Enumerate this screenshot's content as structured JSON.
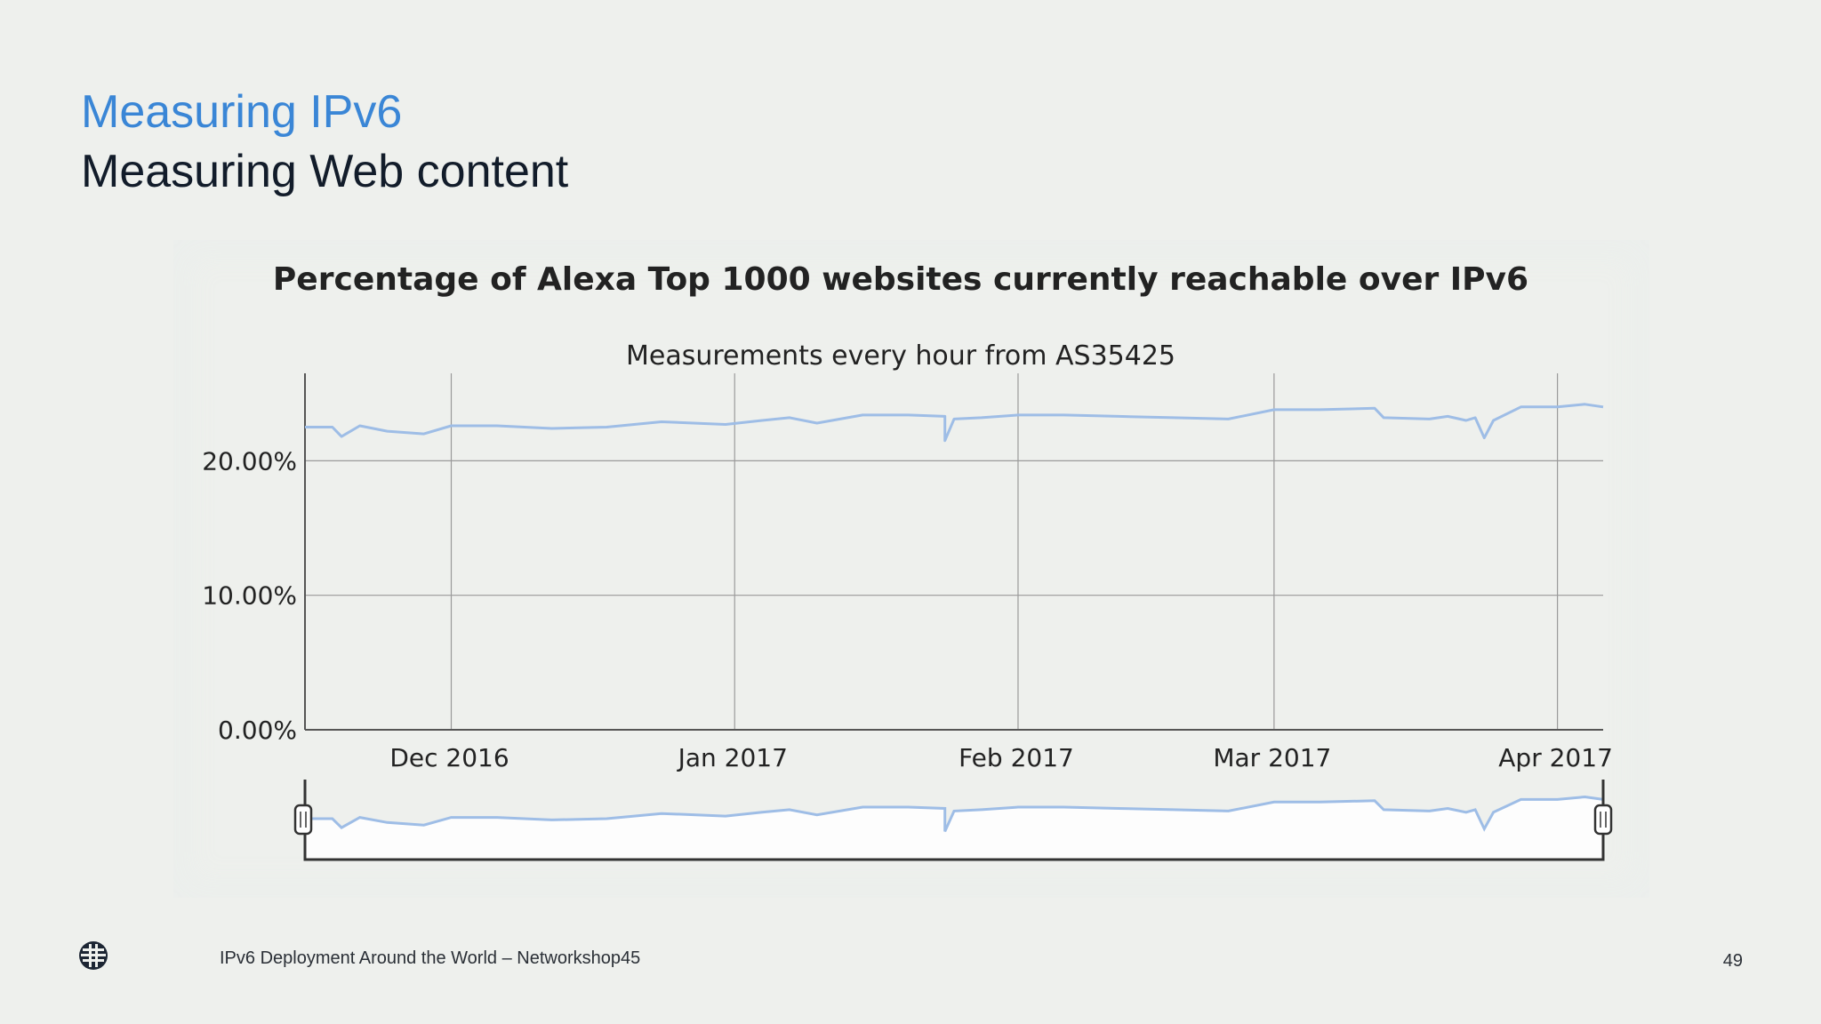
{
  "slide": {
    "title": "Measuring IPv6",
    "subtitle": "Measuring Web content"
  },
  "footer": {
    "text": "IPv6 Deployment Around the World – Networkshop45",
    "page_number": "49",
    "logo_icon": "globe-logo-icon"
  },
  "colors": {
    "title_blue": "#3a86d6",
    "series_line": "#9ebde6",
    "navigator_fill": "#ffffff",
    "grid": "#9a9a9a"
  },
  "chart_data": {
    "type": "line",
    "title": "Percentage of Alexa Top 1000 websites currently reachable over IPv6",
    "subtitle": "Measurements every hour from AS35425",
    "xlabel": "",
    "ylabel": "",
    "y_ticks": [
      "0.00%",
      "10.00%",
      "20.00%"
    ],
    "x_ticks": [
      "Dec 2016",
      "Jan 2017",
      "Feb 2017",
      "Mar 2017",
      "Apr 2017"
    ],
    "x_tick_dates": [
      "2016-12-01",
      "2017-01-01",
      "2017-02-01",
      "2017-03-01",
      "2017-04-01"
    ],
    "xlim": [
      "2016-11-15",
      "2017-04-06"
    ],
    "ylim": [
      0,
      26.5
    ],
    "grid": true,
    "legend": "none",
    "navigator": true,
    "series": [
      {
        "x": [
          "2016-11-15",
          "2016-11-18",
          "2016-11-19",
          "2016-11-21",
          "2016-11-24",
          "2016-11-28",
          "2016-12-01",
          "2016-12-06",
          "2016-12-12",
          "2016-12-18",
          "2016-12-24",
          "2016-12-31",
          "2017-01-04",
          "2017-01-07",
          "2017-01-10",
          "2017-01-15",
          "2017-01-20",
          "2017-01-24",
          "2017-01-24",
          "2017-01-25",
          "2017-01-28",
          "2017-02-01",
          "2017-02-06",
          "2017-02-12",
          "2017-02-18",
          "2017-02-24",
          "2017-03-01",
          "2017-03-06",
          "2017-03-12",
          "2017-03-13",
          "2017-03-18",
          "2017-03-20",
          "2017-03-22",
          "2017-03-23",
          "2017-03-24",
          "2017-03-25",
          "2017-03-28",
          "2017-04-01",
          "2017-04-04",
          "2017-04-06"
        ],
        "y": [
          22.5,
          22.5,
          21.8,
          22.6,
          22.2,
          22.0,
          22.6,
          22.6,
          22.4,
          22.5,
          22.9,
          22.7,
          23.0,
          23.2,
          22.8,
          23.4,
          23.4,
          23.3,
          21.5,
          23.1,
          23.2,
          23.4,
          23.4,
          23.3,
          23.2,
          23.1,
          23.8,
          23.8,
          23.9,
          23.2,
          23.1,
          23.3,
          23.0,
          23.2,
          21.7,
          23.0,
          24.0,
          24.0,
          24.2,
          24.0
        ]
      }
    ]
  }
}
